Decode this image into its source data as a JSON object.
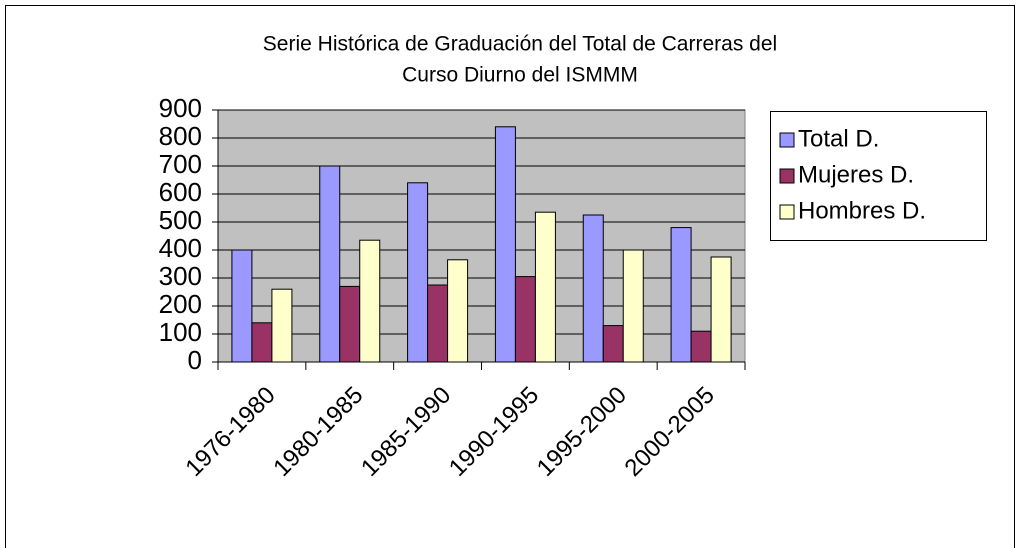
{
  "chart_data": {
    "type": "bar",
    "title": [
      "Serie Histórica de Graduación del Total de Carreras del",
      "Curso Diurno del ISMMM"
    ],
    "categories": [
      "1976-1980",
      "1980-1985",
      "1985-1990",
      "1990-1995",
      "1995-2000",
      "2000-2005"
    ],
    "series": [
      {
        "name": "Total D.",
        "color": "#9999ff",
        "values": [
          400,
          700,
          640,
          840,
          525,
          480
        ]
      },
      {
        "name": "Mujeres D.",
        "color": "#993366",
        "values": [
          140,
          270,
          275,
          305,
          130,
          110
        ]
      },
      {
        "name": "Hombres D.",
        "color": "#ffffcc",
        "values": [
          260,
          435,
          365,
          535,
          400,
          375
        ]
      }
    ],
    "ylim": [
      0,
      900
    ],
    "yticks": [
      0,
      100,
      200,
      300,
      400,
      500,
      600,
      700,
      800,
      900
    ],
    "grid": true,
    "legend": "right",
    "plot_background": "#c0c0c0"
  }
}
